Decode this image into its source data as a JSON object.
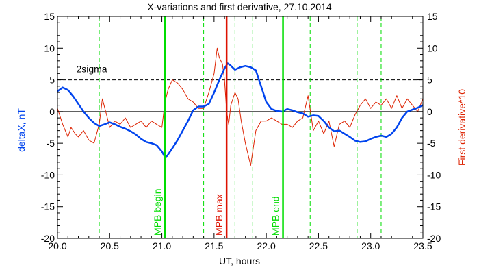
{
  "chart_data": {
    "type": "line",
    "title": "X-variations and first derivative, 27.10.2014",
    "xlabel": "UT, hours",
    "ylabel_left": "deltaX, nT",
    "ylabel_right": "First derivative*10",
    "xlim": [
      20.0,
      23.5
    ],
    "ylim": [
      -20,
      15
    ],
    "xticks": [
      "20.0",
      "20.5",
      "21.0",
      "21.5",
      "22.0",
      "22.5",
      "23.0",
      "23.5"
    ],
    "yticks": [
      "15",
      "10",
      "5",
      "0",
      "-5",
      "-10",
      "-15",
      "-20"
    ],
    "threshold": {
      "label": "2sigma",
      "y": 5
    },
    "colors": {
      "deltaX": "#0044ee",
      "derivative": "#dd2200",
      "green": "#00dd00",
      "red": "#dd1100"
    },
    "vlines_solid": [
      {
        "x": 21.03,
        "label": "MPB begin",
        "color": "#00dd00"
      },
      {
        "x": 21.62,
        "label": "MPB max",
        "color": "#dd1100"
      },
      {
        "x": 22.16,
        "label": "MPB end",
        "color": "#00dd00"
      }
    ],
    "vlines_dashed": [
      20.4,
      21.4,
      21.7,
      21.87,
      22.42,
      22.87,
      23.1
    ],
    "series": [
      {
        "name": "deltaX",
        "axis": "left",
        "x": [
          20.0,
          20.05,
          20.1,
          20.15,
          20.2,
          20.25,
          20.3,
          20.35,
          20.4,
          20.45,
          20.5,
          20.55,
          20.6,
          20.65,
          20.7,
          20.75,
          20.8,
          20.85,
          20.9,
          20.95,
          21.0,
          21.03,
          21.05,
          21.1,
          21.15,
          21.2,
          21.25,
          21.3,
          21.35,
          21.4,
          21.45,
          21.5,
          21.55,
          21.6,
          21.63,
          21.65,
          21.7,
          21.75,
          21.8,
          21.85,
          21.9,
          21.95,
          22.0,
          22.05,
          22.1,
          22.15,
          22.2,
          22.25,
          22.3,
          22.35,
          22.4,
          22.45,
          22.5,
          22.55,
          22.6,
          22.65,
          22.7,
          22.75,
          22.8,
          22.85,
          22.9,
          22.95,
          23.0,
          23.05,
          23.1,
          23.15,
          23.2,
          23.25,
          23.3,
          23.35,
          23.4,
          23.45,
          23.5
        ],
        "y": [
          3.2,
          3.8,
          3.4,
          2.4,
          1.2,
          0.0,
          -1.0,
          -1.8,
          -2.3,
          -2.0,
          -1.7,
          -2.0,
          -2.4,
          -2.7,
          -3.1,
          -3.6,
          -4.3,
          -4.8,
          -5.0,
          -5.3,
          -6.3,
          -7.2,
          -7.0,
          -5.8,
          -4.5,
          -3.0,
          -1.5,
          0.2,
          0.8,
          0.8,
          1.2,
          3.0,
          5.0,
          6.8,
          7.6,
          7.4,
          6.6,
          7.0,
          7.2,
          7.0,
          6.5,
          4.0,
          1.5,
          0.4,
          0.1,
          0.0,
          0.4,
          0.2,
          -0.1,
          -0.3,
          -0.8,
          -0.6,
          -0.7,
          -1.5,
          -2.5,
          -3.1,
          -3.0,
          -3.5,
          -4.0,
          -4.6,
          -4.8,
          -4.7,
          -4.3,
          -4.0,
          -3.8,
          -4.0,
          -3.5,
          -2.5,
          -1.0,
          0.0,
          0.3,
          0.6,
          1.0
        ]
      },
      {
        "name": "First derivative*10",
        "axis": "right",
        "x": [
          20.0,
          20.05,
          20.1,
          20.13,
          20.17,
          20.2,
          20.25,
          20.3,
          20.35,
          20.4,
          20.43,
          20.47,
          20.5,
          20.55,
          20.6,
          20.65,
          20.7,
          20.75,
          20.8,
          20.85,
          20.9,
          20.95,
          21.0,
          21.03,
          21.06,
          21.1,
          21.15,
          21.2,
          21.25,
          21.3,
          21.35,
          21.4,
          21.45,
          21.5,
          21.53,
          21.55,
          21.58,
          21.6,
          21.62,
          21.64,
          21.66,
          21.7,
          21.73,
          21.76,
          21.8,
          21.85,
          21.9,
          21.95,
          22.0,
          22.05,
          22.1,
          22.15,
          22.2,
          22.25,
          22.3,
          22.35,
          22.4,
          22.45,
          22.5,
          22.55,
          22.6,
          22.65,
          22.7,
          22.75,
          22.8,
          22.85,
          22.9,
          22.95,
          23.0,
          23.05,
          23.1,
          23.15,
          23.2,
          23.25,
          23.3,
          23.35,
          23.4,
          23.45,
          23.5
        ],
        "y": [
          0.5,
          -2.0,
          -4.0,
          -2.5,
          -3.5,
          -4.0,
          -3.0,
          -4.5,
          -5.0,
          -2.0,
          2.0,
          -0.5,
          -2.5,
          -1.5,
          -2.0,
          -1.0,
          -2.5,
          -2.0,
          -1.5,
          -2.5,
          -1.5,
          -2.0,
          -2.5,
          1.5,
          3.5,
          5.0,
          4.5,
          3.5,
          2.0,
          1.5,
          0.5,
          0.5,
          3.0,
          6.0,
          10.0,
          8.5,
          7.5,
          5.0,
          0.0,
          -2.0,
          1.0,
          3.0,
          2.0,
          -1.5,
          -5.0,
          -8.5,
          -3.0,
          -1.5,
          -1.5,
          -1.0,
          -1.5,
          -2.0,
          -2.0,
          -2.5,
          -1.5,
          -1.0,
          2.5,
          -3.0,
          -1.5,
          -3.5,
          -1.5,
          -5.5,
          -2.0,
          -1.5,
          -2.5,
          -0.5,
          1.0,
          2.0,
          0.5,
          1.5,
          1.0,
          2.0,
          0.5,
          2.5,
          0.5,
          2.0,
          1.0,
          0.0,
          2.0
        ]
      }
    ]
  }
}
